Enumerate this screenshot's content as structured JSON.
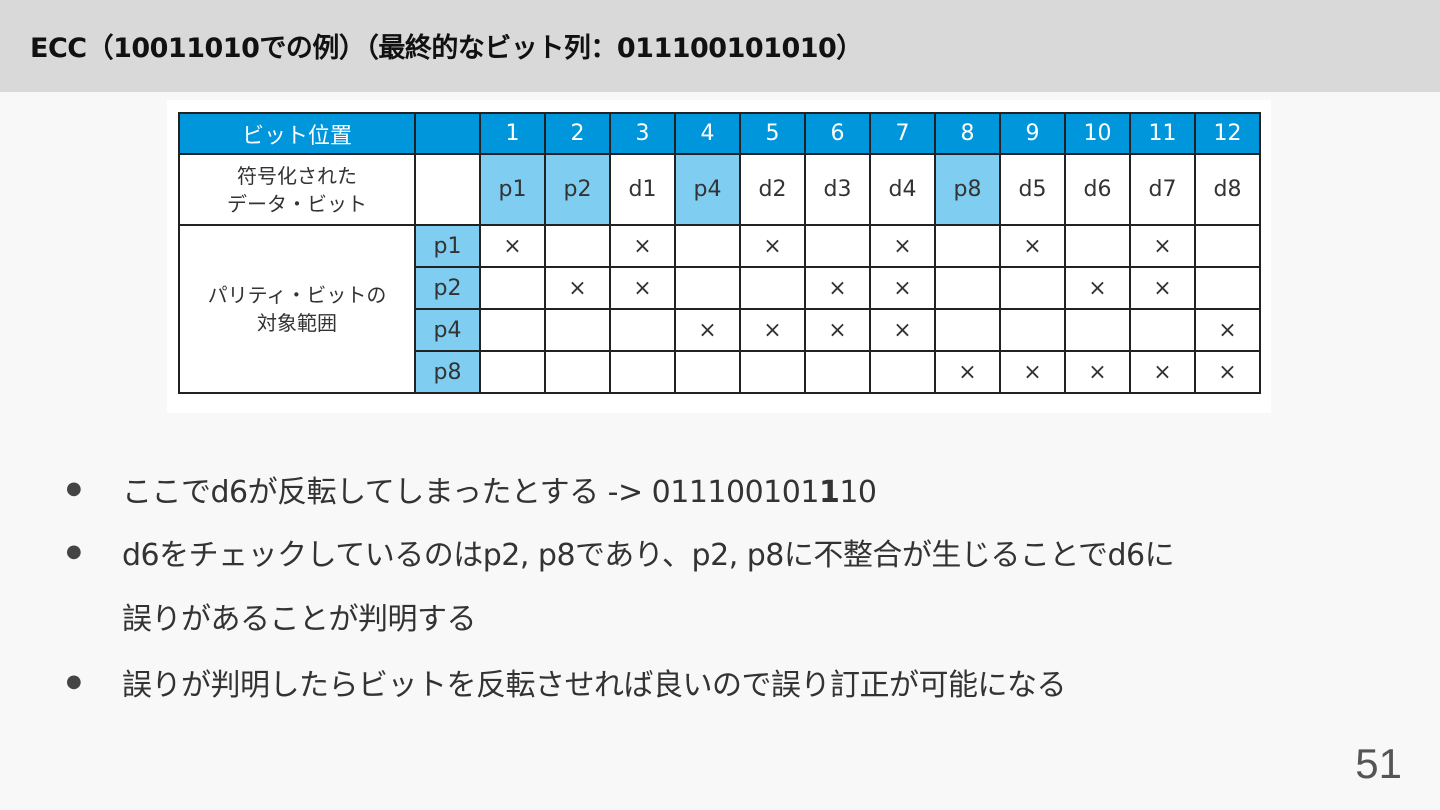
{
  "title": "ECC（10011010での例）（最終的なビット列：011100101010）",
  "table": {
    "header_label": "ビット位置",
    "positions": [
      "1",
      "2",
      "3",
      "4",
      "5",
      "6",
      "7",
      "8",
      "9",
      "10",
      "11",
      "12"
    ],
    "encoded_label": "符号化された\nデータ・ビット",
    "encoded": [
      "p1",
      "p2",
      "d1",
      "p4",
      "d2",
      "d3",
      "d4",
      "p8",
      "d5",
      "d6",
      "d7",
      "d8"
    ],
    "parity_positions": [
      1,
      2,
      4,
      8
    ],
    "parity_label": "パリティ・ビットの\n対象範囲",
    "parity_rows": [
      {
        "name": "p1",
        "marks": [
          1,
          3,
          5,
          7,
          9,
          11
        ]
      },
      {
        "name": "p2",
        "marks": [
          2,
          3,
          6,
          7,
          10,
          11
        ]
      },
      {
        "name": "p4",
        "marks": [
          4,
          5,
          6,
          7,
          12
        ]
      },
      {
        "name": "p8",
        "marks": [
          8,
          9,
          10,
          11,
          12
        ]
      }
    ],
    "mark": "×",
    "colors": {
      "header": "#0096dc",
      "parity_cell": "#7fcdf0"
    }
  },
  "bullets": [
    {
      "text": "ここでd6が反転してしまったとする -> 011100101",
      "bold": "1",
      "tail": "10"
    },
    {
      "text": "d6をチェックしているのはp2, p8であり、p2, p8に不整合が生じることでd6に"
    },
    {
      "text": "誤りがあることが判明する"
    },
    {
      "text": "誤りが判明したらビットを反転させれば良いので誤り訂正が可能になる"
    }
  ],
  "bullet_symbol": "●",
  "page_number": "51"
}
